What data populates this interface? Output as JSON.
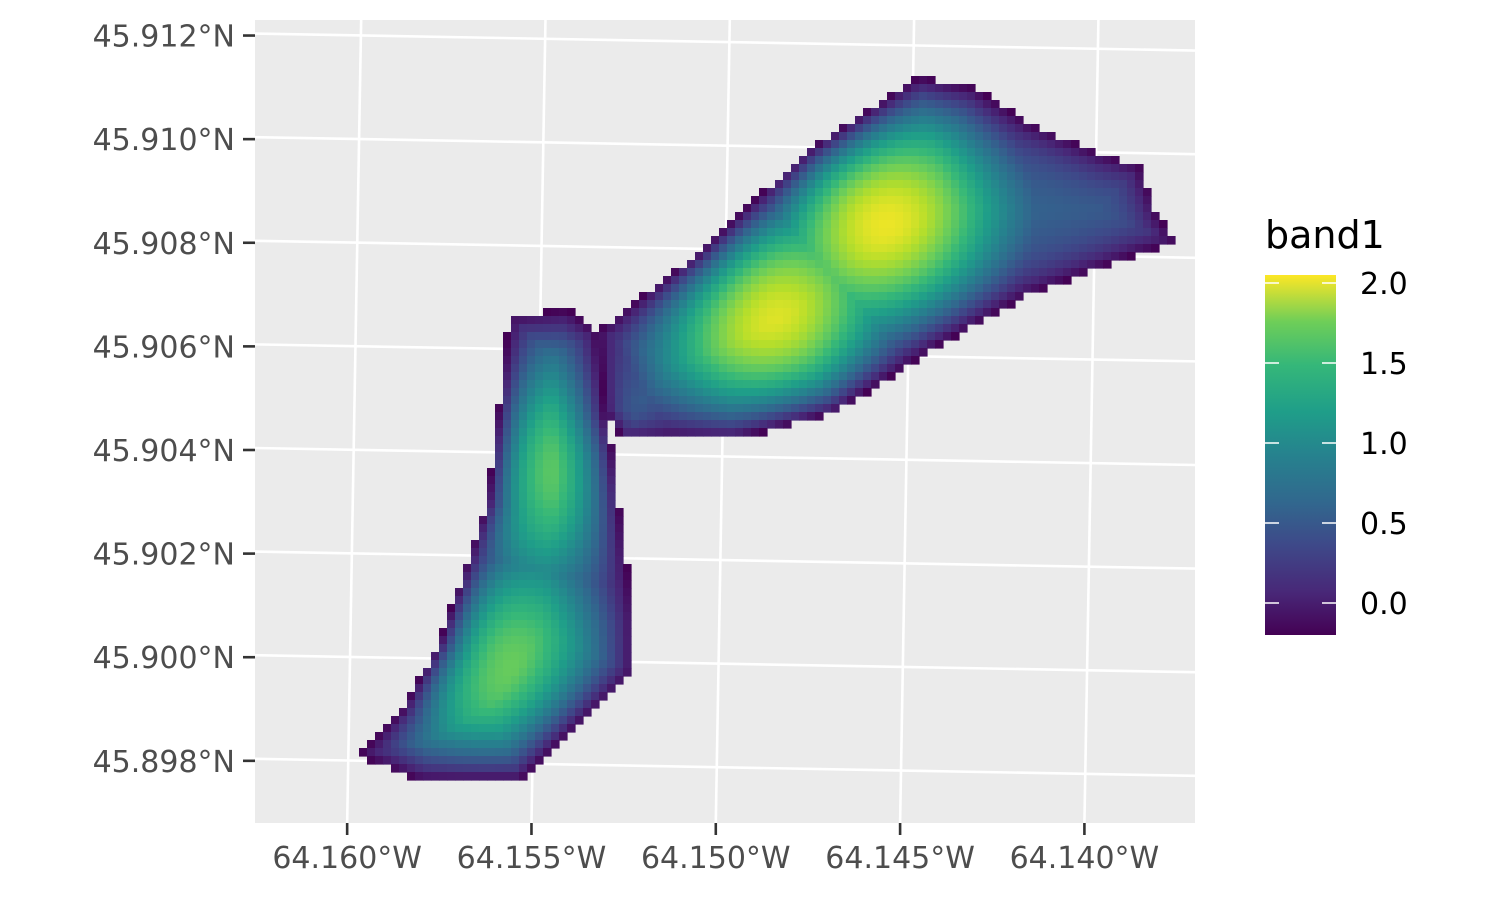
{
  "chart_data": {
    "type": "heatmap",
    "title": "",
    "xlabel": "",
    "ylabel": "",
    "x_range": [
      -64.1625,
      -64.137
    ],
    "y_range": [
      45.8968,
      45.9123
    ],
    "x_ticks": [
      {
        "value": -64.16,
        "label": "64.160°W"
      },
      {
        "value": -64.155,
        "label": "64.155°W"
      },
      {
        "value": -64.15,
        "label": "64.150°W"
      },
      {
        "value": -64.145,
        "label": "64.145°W"
      },
      {
        "value": -64.14,
        "label": "64.140°W"
      }
    ],
    "y_ticks": [
      {
        "value": 45.912,
        "label": "45.912°N"
      },
      {
        "value": 45.91,
        "label": "45.910°N"
      },
      {
        "value": 45.908,
        "label": "45.908°N"
      },
      {
        "value": 45.906,
        "label": "45.906°N"
      },
      {
        "value": 45.904,
        "label": "45.904°N"
      },
      {
        "value": 45.902,
        "label": "45.902°N"
      },
      {
        "value": 45.9,
        "label": "45.900°N"
      },
      {
        "value": 45.898,
        "label": "45.898°N"
      }
    ],
    "grid": true,
    "panel_background": "#ebebeb",
    "grid_color": "#ffffff",
    "colormap": "viridis",
    "legend": {
      "title": "band1",
      "position": "right",
      "range": [
        -0.2,
        2.05
      ],
      "breaks": [
        {
          "value": 2.0,
          "label": "2.0"
        },
        {
          "value": 1.5,
          "label": "1.5"
        },
        {
          "value": 1.0,
          "label": "1.0"
        },
        {
          "value": 0.5,
          "label": "0.5"
        },
        {
          "value": 0.0,
          "label": "0.0"
        }
      ]
    },
    "field": {
      "description_values": "band1 raster values, min about -0.2 at shape edge, max about 2.05",
      "footprint": {
        "lower_arm": [
          [
            -64.1597,
            45.8981
          ],
          [
            -64.1585,
            45.899
          ],
          [
            -64.1575,
            45.9003
          ],
          [
            -64.1562,
            45.903
          ],
          [
            -64.1556,
            45.9066
          ],
          [
            -64.154,
            45.9067
          ],
          [
            -64.1532,
            45.9063
          ],
          [
            -64.153,
            45.9047
          ],
          [
            -64.1528,
            45.904
          ],
          [
            -64.1525,
            45.9022
          ],
          [
            -64.1522,
            45.9007
          ],
          [
            -64.1522,
            45.8997
          ],
          [
            -64.1528,
            45.8993
          ],
          [
            -64.1543,
            45.8983
          ],
          [
            -64.1553,
            45.8976
          ],
          [
            -64.158,
            45.8976
          ]
        ],
        "upper_arm": [
          [
            -64.1532,
            45.9063
          ],
          [
            -64.1505,
            45.9078
          ],
          [
            -64.1475,
            45.9098
          ],
          [
            -64.1445,
            45.9112
          ],
          [
            -64.143,
            45.911
          ],
          [
            -64.1415,
            45.9103
          ],
          [
            -64.1395,
            45.9097
          ],
          [
            -64.1385,
            45.9095
          ],
          [
            -64.138,
            45.9085
          ],
          [
            -64.1375,
            45.908
          ],
          [
            -64.1385,
            45.9078
          ],
          [
            -64.1415,
            45.907
          ],
          [
            -64.144,
            45.906
          ],
          [
            -64.1468,
            45.9047
          ],
          [
            -64.1495,
            45.9042
          ],
          [
            -64.1525,
            45.9042
          ],
          [
            -64.153,
            45.9047
          ]
        ]
      },
      "peaks": [
        {
          "x": -64.1455,
          "y": 45.9085,
          "value": 2.05
        },
        {
          "x": -64.1485,
          "y": 45.9066,
          "value": 2.0
        },
        {
          "x": -64.1551,
          "y": 45.9037,
          "value": 1.75
        },
        {
          "x": -64.1562,
          "y": 45.9,
          "value": 1.7
        }
      ]
    }
  }
}
